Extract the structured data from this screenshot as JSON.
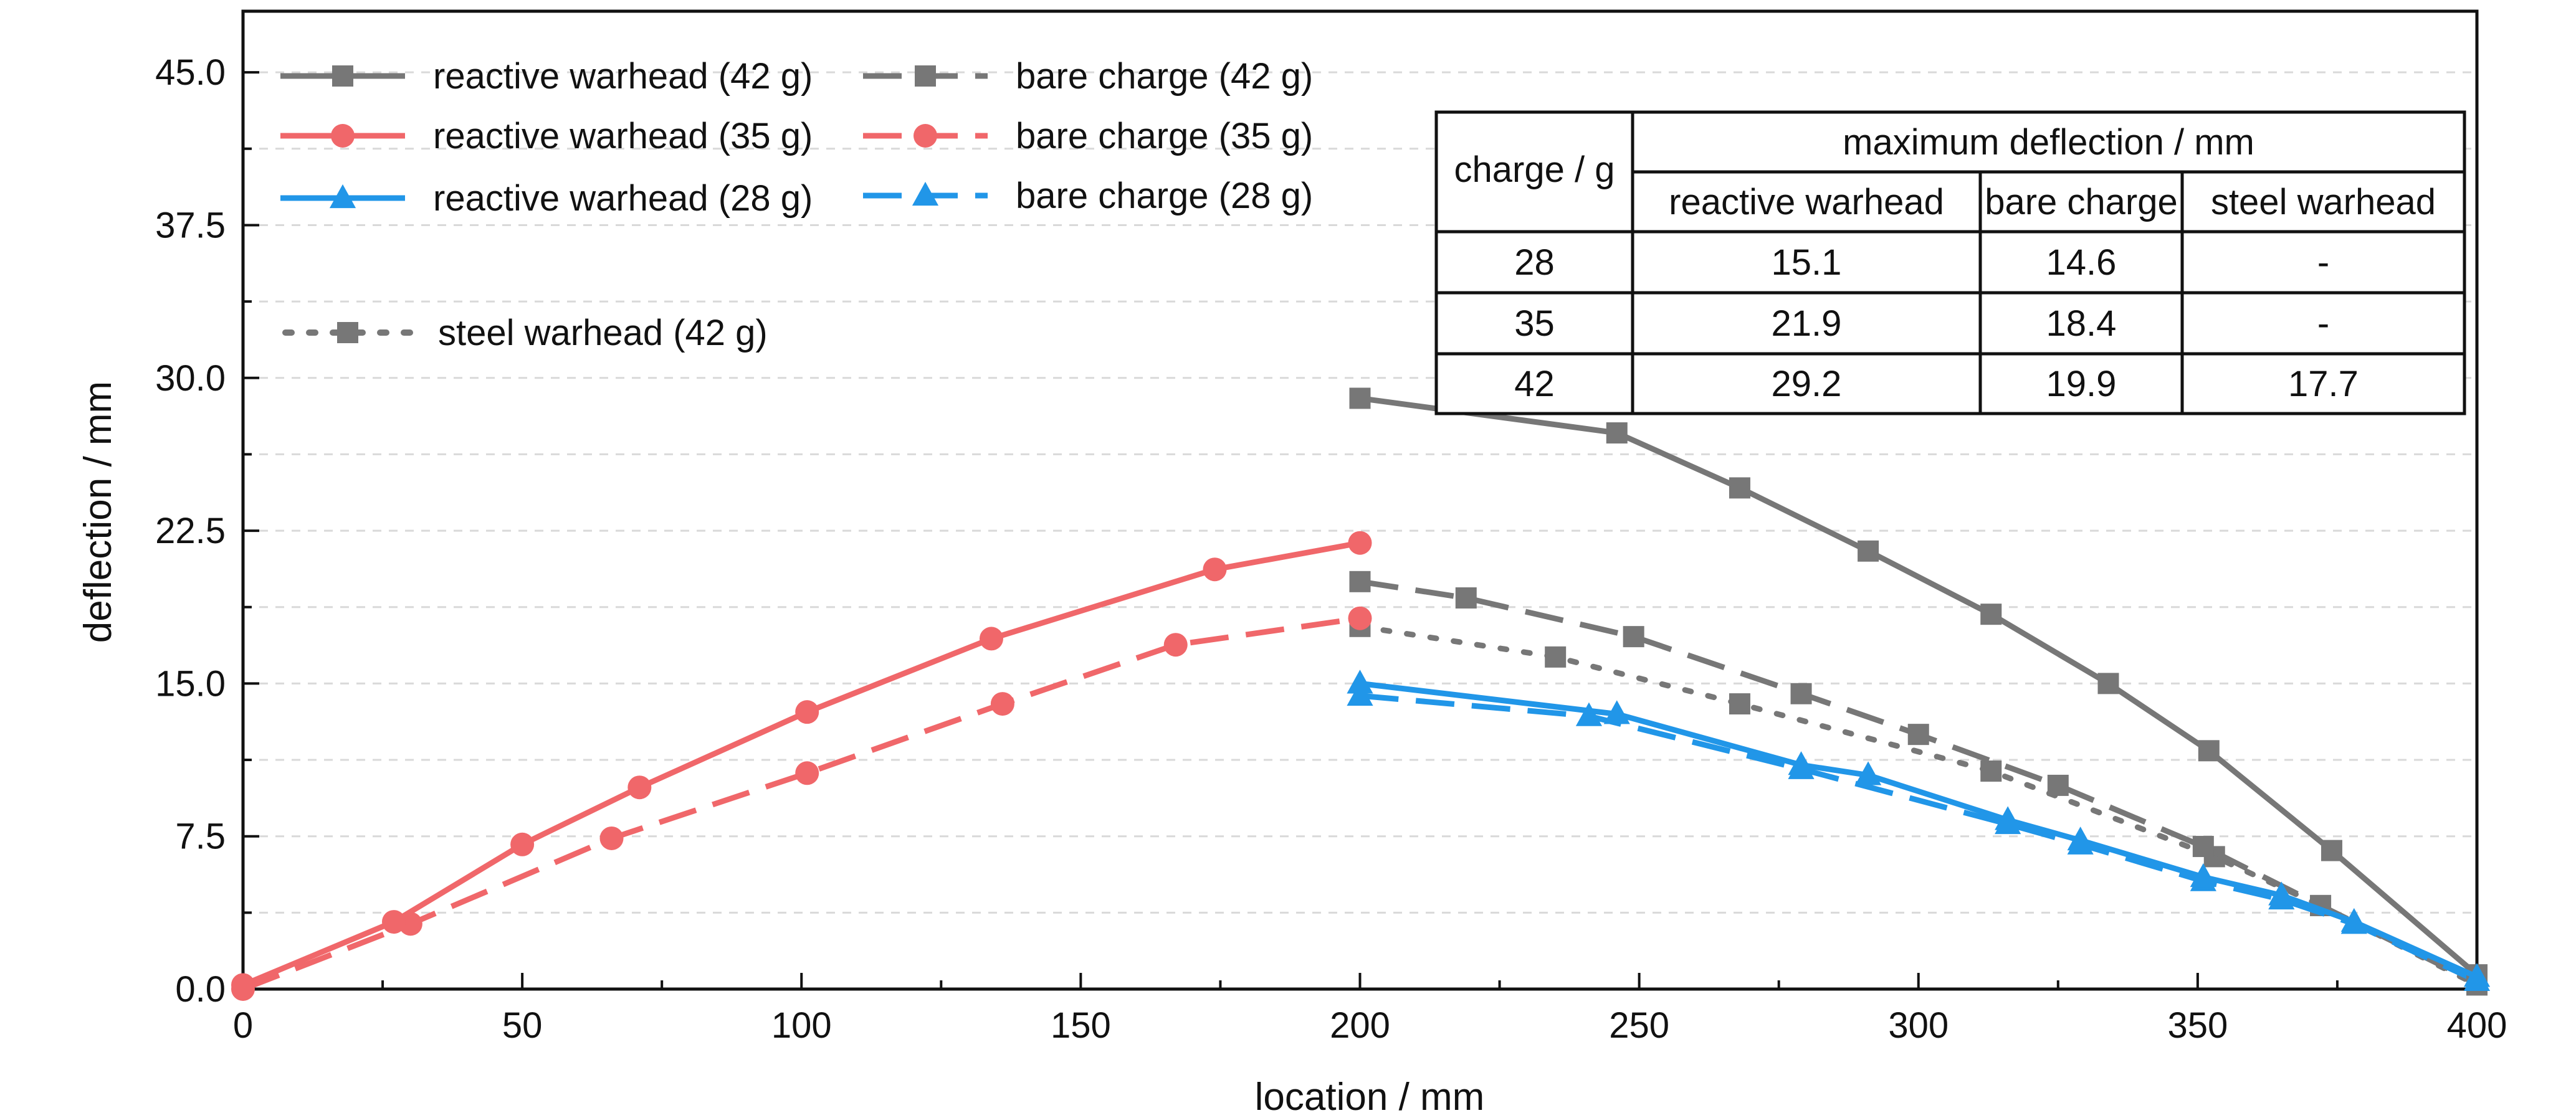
{
  "chart_data": {
    "type": "line",
    "xlabel": "location / mm",
    "ylabel": "deflection / mm",
    "xlim": [
      0,
      400
    ],
    "ylim": [
      0,
      48
    ],
    "xticks": [
      0,
      50,
      100,
      150,
      200,
      250,
      300,
      350,
      400
    ],
    "yticks": [
      0.0,
      7.5,
      15.0,
      22.5,
      30.0,
      37.5,
      45.0
    ],
    "ytick_labels": [
      "0.0",
      "7.5",
      "15.0",
      "22.5",
      "30.0",
      "37.5",
      "45.0"
    ],
    "grid": "horizontal dashed",
    "legend_placement": "top-left",
    "series": [
      {
        "name": "reactive warhead (42 g)",
        "color": "#777777",
        "line": "solid",
        "marker": "square",
        "x": [
          200,
          246,
          268,
          291,
          313,
          334,
          352,
          374,
          400
        ],
        "y": [
          29.0,
          27.3,
          24.6,
          21.5,
          18.4,
          15.0,
          11.7,
          6.8,
          0.7
        ]
      },
      {
        "name": "reactive warhead (35 g)",
        "color": "#F0676A",
        "line": "solid",
        "marker": "circle",
        "x": [
          0,
          27,
          50,
          71,
          101,
          134,
          174,
          200
        ],
        "y": [
          0.2,
          3.3,
          7.1,
          9.9,
          13.6,
          17.2,
          20.6,
          21.9
        ]
      },
      {
        "name": "reactive warhead (28 g)",
        "color": "#2196E8",
        "line": "solid",
        "marker": "triangle",
        "x": [
          200,
          246,
          279,
          291,
          316,
          329,
          351,
          365,
          378,
          400
        ],
        "y": [
          15.0,
          13.5,
          11.0,
          10.5,
          8.3,
          7.3,
          5.5,
          4.6,
          3.3,
          0.6
        ]
      },
      {
        "name": "bare charge (42 g)",
        "color": "#777777",
        "line": "dashed",
        "marker": "square",
        "x": [
          200,
          219,
          249,
          279,
          300,
          325,
          351,
          372,
          400
        ],
        "y": [
          20.0,
          19.2,
          17.3,
          14.5,
          12.5,
          10.0,
          7.0,
          4.1,
          0.3
        ]
      },
      {
        "name": "bare charge (35 g)",
        "color": "#F0676A",
        "line": "dashed",
        "marker": "circle",
        "x": [
          0,
          30,
          66,
          101,
          136,
          167,
          200
        ],
        "y": [
          0.0,
          3.2,
          7.4,
          10.6,
          14.0,
          16.9,
          18.2
        ]
      },
      {
        "name": "bare charge (28 g)",
        "color": "#2196E8",
        "line": "dashed",
        "marker": "triangle",
        "x": [
          200,
          241,
          279,
          316,
          329,
          351,
          365,
          378,
          400
        ],
        "y": [
          14.4,
          13.4,
          10.8,
          8.1,
          7.1,
          5.3,
          4.4,
          3.2,
          0.4
        ]
      },
      {
        "name": "steel warhead (42 g)",
        "color": "#777777",
        "line": "dotted",
        "marker": "square",
        "x": [
          200,
          235,
          268,
          313,
          353,
          372,
          400
        ],
        "y": [
          17.8,
          16.3,
          14.0,
          10.7,
          6.5,
          4.1,
          0.2
        ]
      }
    ],
    "table": {
      "header_left": "charge / g",
      "header_top": "maximum deflection / mm",
      "columns": [
        "reactive warhead",
        "bare charge",
        "steel warhead"
      ],
      "rows": [
        [
          "28",
          "15.1",
          "14.6",
          "-"
        ],
        [
          "35",
          "21.9",
          "18.4",
          "-"
        ],
        [
          "42",
          "29.2",
          "19.9",
          "17.7"
        ]
      ]
    }
  }
}
